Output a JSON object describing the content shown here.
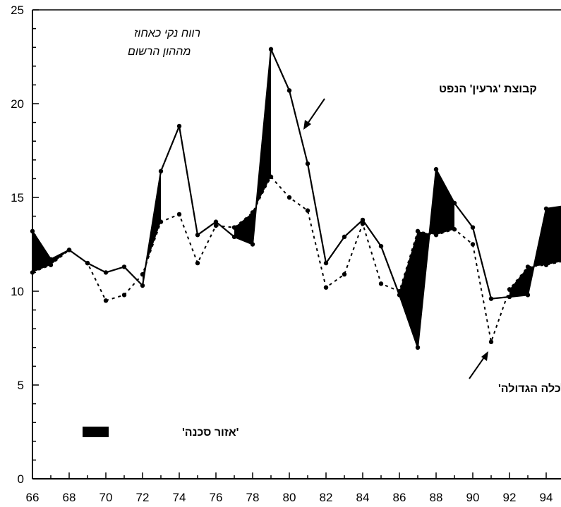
{
  "chart_data": {
    "type": "line",
    "y_note": [
      "רווח נקי כאחוז",
      "מההון הרשום"
    ],
    "x_tick_labels": [
      "66",
      "68",
      "70",
      "72",
      "74",
      "76",
      "78",
      "80",
      "82",
      "84",
      "86",
      "88",
      "90",
      "92",
      "94"
    ],
    "y_tick_labels": [
      "0",
      "5",
      "10",
      "15",
      "20",
      "25"
    ],
    "xlim": [
      66,
      95.4
    ],
    "ylim": [
      0,
      25
    ],
    "x": [
      66,
      67,
      68,
      69,
      70,
      71,
      72,
      73,
      74,
      75,
      76,
      77,
      78,
      79,
      80,
      81,
      82,
      83,
      84,
      85,
      86,
      87,
      88,
      89,
      90,
      91,
      92,
      93,
      94,
      95.4
    ],
    "series": [
      {
        "name": "קבוצת 'גרעין' הנפט",
        "style": "solid",
        "values": [
          13.2,
          11.7,
          12.2,
          11.5,
          11.0,
          11.3,
          10.3,
          16.4,
          18.8,
          13.0,
          13.7,
          12.9,
          12.5,
          22.9,
          20.7,
          16.8,
          11.5,
          12.9,
          13.8,
          12.4,
          9.8,
          7.0,
          16.5,
          14.7,
          13.4,
          9.6,
          9.7,
          9.8,
          14.4,
          14.6
        ]
      },
      {
        "name": "ה'כלכלה הגדולה'",
        "style": "dashed",
        "values": [
          11.0,
          11.4,
          12.2,
          11.5,
          9.5,
          9.8,
          10.9,
          13.7,
          14.1,
          11.5,
          13.5,
          13.4,
          14.2,
          16.1,
          15.0,
          14.3,
          10.2,
          10.9,
          13.6,
          10.4,
          10.0,
          13.2,
          13.0,
          13.3,
          12.5,
          7.3,
          10.1,
          11.3,
          11.4,
          11.7
        ]
      }
    ],
    "danger_zone_label": "'אזור סכנה'",
    "danger_zone_color": "#000000"
  }
}
